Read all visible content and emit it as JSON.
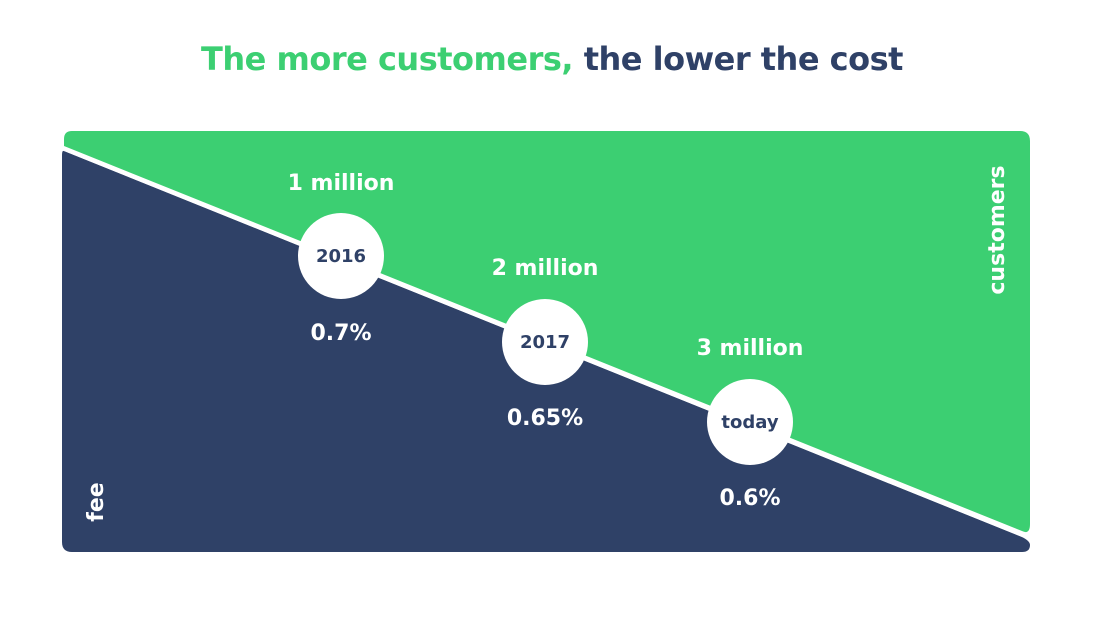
{
  "title": {
    "part1": "The more customers,",
    "part2": "the lower the cost"
  },
  "axis_labels": {
    "customers": "customers",
    "fee": "fee"
  },
  "milestones": [
    {
      "year": "2016",
      "customers": "1 million",
      "fee": "0.7%"
    },
    {
      "year": "2017",
      "customers": "2 million",
      "fee": "0.65%"
    },
    {
      "year": "today",
      "customers": "3 million",
      "fee": "0.6%"
    }
  ],
  "colors": {
    "green": "#3ccf72",
    "navy": "#2f4167",
    "white": "#ffffff"
  }
}
